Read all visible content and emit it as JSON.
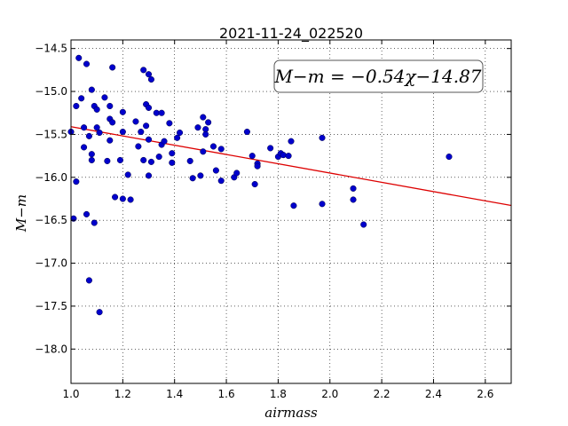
{
  "chart_data": {
    "type": "scatter",
    "title": "2021-11-24_022520",
    "xlabel": "airmass",
    "ylabel": "M−m",
    "xlim": [
      1.0,
      2.7
    ],
    "ylim": [
      -18.4,
      -14.4
    ],
    "xticks": [
      1.0,
      1.2,
      1.4,
      1.6,
      1.8,
      2.0,
      2.2,
      2.4,
      2.6
    ],
    "xtick_labels": [
      "1.0",
      "1.2",
      "1.4",
      "1.6",
      "1.8",
      "2.0",
      "2.2",
      "2.4",
      "2.6"
    ],
    "yticks": [
      -14.5,
      -15.0,
      -15.5,
      -16.0,
      -16.5,
      -17.0,
      -17.5,
      -18.0
    ],
    "ytick_labels": [
      "−14.5",
      "−15.0",
      "−15.5",
      "−16.0",
      "−16.5",
      "−17.0",
      "−17.5",
      "−18.0"
    ],
    "grid": true,
    "annotation": "M−m = −0.54χ−14.87",
    "fit": {
      "slope": -0.54,
      "intercept": -14.87,
      "color": "#dd0000"
    },
    "point_color": "#0000cc",
    "points": [
      [
        1.0,
        -15.47
      ],
      [
        1.01,
        -16.48
      ],
      [
        1.02,
        -16.05
      ],
      [
        1.02,
        -15.17
      ],
      [
        1.03,
        -14.61
      ],
      [
        1.04,
        -15.08
      ],
      [
        1.05,
        -15.65
      ],
      [
        1.05,
        -15.42
      ],
      [
        1.06,
        -14.68
      ],
      [
        1.06,
        -16.43
      ],
      [
        1.07,
        -17.2
      ],
      [
        1.07,
        -15.52
      ],
      [
        1.08,
        -14.98
      ],
      [
        1.08,
        -15.73
      ],
      [
        1.08,
        -15.8
      ],
      [
        1.09,
        -16.53
      ],
      [
        1.09,
        -15.17
      ],
      [
        1.1,
        -15.21
      ],
      [
        1.1,
        -15.42
      ],
      [
        1.11,
        -17.57
      ],
      [
        1.11,
        -15.48
      ],
      [
        1.13,
        -15.07
      ],
      [
        1.14,
        -15.81
      ],
      [
        1.15,
        -15.57
      ],
      [
        1.15,
        -15.17
      ],
      [
        1.15,
        -15.32
      ],
      [
        1.16,
        -15.36
      ],
      [
        1.16,
        -14.72
      ],
      [
        1.17,
        -16.23
      ],
      [
        1.19,
        -15.8
      ],
      [
        1.2,
        -15.47
      ],
      [
        1.2,
        -15.24
      ],
      [
        1.2,
        -16.25
      ],
      [
        1.22,
        -15.97
      ],
      [
        1.23,
        -16.26
      ],
      [
        1.25,
        -15.35
      ],
      [
        1.26,
        -15.64
      ],
      [
        1.27,
        -15.47
      ],
      [
        1.28,
        -15.8
      ],
      [
        1.28,
        -14.75
      ],
      [
        1.29,
        -15.4
      ],
      [
        1.29,
        -15.15
      ],
      [
        1.3,
        -15.56
      ],
      [
        1.3,
        -15.98
      ],
      [
        1.3,
        -15.19
      ],
      [
        1.3,
        -14.8
      ],
      [
        1.31,
        -14.86
      ],
      [
        1.31,
        -15.82
      ],
      [
        1.33,
        -15.25
      ],
      [
        1.34,
        -15.76
      ],
      [
        1.35,
        -15.62
      ],
      [
        1.35,
        -15.25
      ],
      [
        1.36,
        -15.58
      ],
      [
        1.38,
        -15.37
      ],
      [
        1.39,
        -15.83
      ],
      [
        1.39,
        -15.72
      ],
      [
        1.41,
        -15.54
      ],
      [
        1.42,
        -15.48
      ],
      [
        1.46,
        -15.81
      ],
      [
        1.47,
        -16.01
      ],
      [
        1.49,
        -15.42
      ],
      [
        1.5,
        -15.98
      ],
      [
        1.51,
        -15.3
      ],
      [
        1.51,
        -15.7
      ],
      [
        1.52,
        -15.44
      ],
      [
        1.52,
        -15.5
      ],
      [
        1.53,
        -15.36
      ],
      [
        1.55,
        -15.64
      ],
      [
        1.56,
        -15.92
      ],
      [
        1.58,
        -16.04
      ],
      [
        1.58,
        -15.67
      ],
      [
        1.63,
        -16.0
      ],
      [
        1.64,
        -15.95
      ],
      [
        1.68,
        -15.47
      ],
      [
        1.7,
        -15.75
      ],
      [
        1.71,
        -16.08
      ],
      [
        1.72,
        -15.84
      ],
      [
        1.72,
        -15.87
      ],
      [
        1.77,
        -15.66
      ],
      [
        1.8,
        -15.76
      ],
      [
        1.81,
        -15.72
      ],
      [
        1.82,
        -15.74
      ],
      [
        1.84,
        -15.75
      ],
      [
        1.85,
        -15.58
      ],
      [
        1.86,
        -16.33
      ],
      [
        1.97,
        -15.54
      ],
      [
        1.97,
        -16.31
      ],
      [
        2.09,
        -16.26
      ],
      [
        2.09,
        -16.13
      ],
      [
        2.13,
        -16.55
      ],
      [
        2.46,
        -15.76
      ]
    ]
  }
}
